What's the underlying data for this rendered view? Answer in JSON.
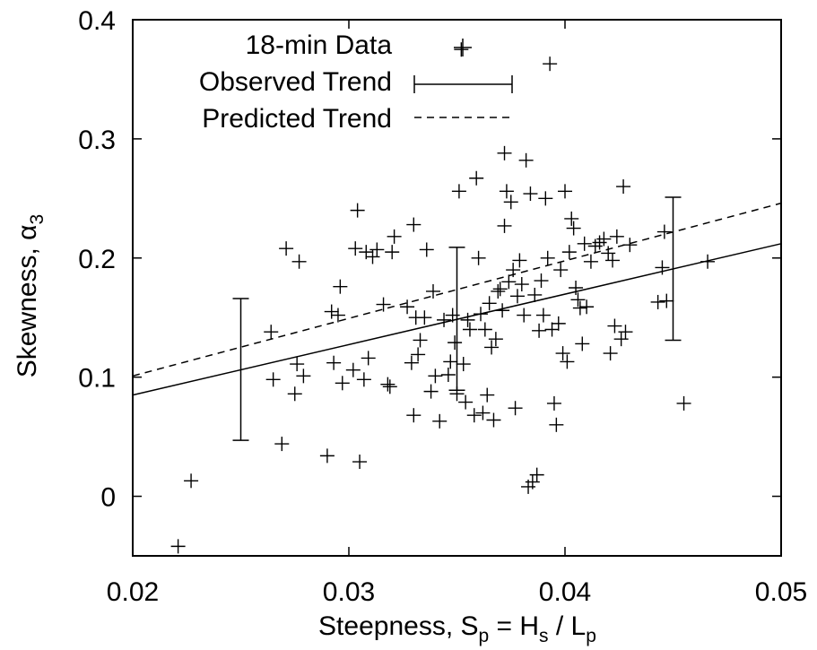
{
  "chart_data": {
    "type": "scatter",
    "xlabel": {
      "text": "Steepness, S",
      "sub_p": "p",
      "eq": " = H",
      "sub_s": "s",
      "slash": " / L",
      "sub_p2": "p"
    },
    "ylabel": {
      "text": "Skewness, α",
      "sub": "3"
    },
    "xlim": [
      0.02,
      0.05
    ],
    "ylim": [
      -0.05,
      0.4
    ],
    "x_ticks": [
      0.02,
      0.03,
      0.04,
      0.05
    ],
    "x_tick_labels": [
      "0.02",
      "0.03",
      "0.04",
      "0.05"
    ],
    "y_ticks": [
      0,
      0.1,
      0.2,
      0.3,
      0.4
    ],
    "y_tick_labels": [
      "0",
      "0.1",
      "0.2",
      "0.3",
      "0.4"
    ],
    "grid": false,
    "legend_position": "top-left",
    "series": [
      {
        "name": "18-min Data",
        "style": "plus-markers",
        "points": [
          [
            0.0221,
            -0.042
          ],
          [
            0.0227,
            0.013
          ],
          [
            0.0264,
            0.138
          ],
          [
            0.0265,
            0.098
          ],
          [
            0.0269,
            0.044
          ],
          [
            0.0271,
            0.208
          ],
          [
            0.0275,
            0.086
          ],
          [
            0.0276,
            0.111
          ],
          [
            0.0277,
            0.197
          ],
          [
            0.0279,
            0.101
          ],
          [
            0.029,
            0.034
          ],
          [
            0.0292,
            0.155
          ],
          [
            0.0293,
            0.112
          ],
          [
            0.0295,
            0.152
          ],
          [
            0.0296,
            0.176
          ],
          [
            0.0297,
            0.095
          ],
          [
            0.0302,
            0.106
          ],
          [
            0.0303,
            0.208
          ],
          [
            0.0304,
            0.24
          ],
          [
            0.0305,
            0.029
          ],
          [
            0.0307,
            0.098
          ],
          [
            0.0308,
            0.205
          ],
          [
            0.0309,
            0.116
          ],
          [
            0.0311,
            0.201
          ],
          [
            0.0313,
            0.207
          ],
          [
            0.0316,
            0.161
          ],
          [
            0.0318,
            0.094
          ],
          [
            0.0319,
            0.092
          ],
          [
            0.032,
            0.205
          ],
          [
            0.0321,
            0.218
          ],
          [
            0.0327,
            0.159
          ],
          [
            0.0329,
            0.112
          ],
          [
            0.033,
            0.228
          ],
          [
            0.033,
            0.068
          ],
          [
            0.0331,
            0.15
          ],
          [
            0.0332,
            0.119
          ],
          [
            0.0333,
            0.131
          ],
          [
            0.0335,
            0.15
          ],
          [
            0.0336,
            0.207
          ],
          [
            0.0338,
            0.088
          ],
          [
            0.0339,
            0.172
          ],
          [
            0.034,
            0.101
          ],
          [
            0.0342,
            0.063
          ],
          [
            0.0344,
            0.148
          ],
          [
            0.0346,
            0.102
          ],
          [
            0.0347,
            0.113
          ],
          [
            0.0348,
            0.152
          ],
          [
            0.0349,
            0.129
          ],
          [
            0.035,
            0.086
          ],
          [
            0.0351,
            0.256
          ],
          [
            0.0352,
            0.375
          ],
          [
            0.0353,
            0.111
          ],
          [
            0.0354,
            0.079
          ],
          [
            0.0355,
            0.148
          ],
          [
            0.0356,
            0.14
          ],
          [
            0.0358,
            0.068
          ],
          [
            0.0359,
            0.267
          ],
          [
            0.036,
            0.2
          ],
          [
            0.0361,
            0.153
          ],
          [
            0.0362,
            0.07
          ],
          [
            0.0363,
            0.14
          ],
          [
            0.0364,
            0.085
          ],
          [
            0.0365,
            0.162
          ],
          [
            0.0366,
            0.125
          ],
          [
            0.0367,
            0.064
          ],
          [
            0.0368,
            0.132
          ],
          [
            0.0369,
            0.172
          ],
          [
            0.037,
            0.174
          ],
          [
            0.0371,
            0.156
          ],
          [
            0.0372,
            0.227
          ],
          [
            0.0372,
            0.288
          ],
          [
            0.0373,
            0.256
          ],
          [
            0.0374,
            0.18
          ],
          [
            0.0375,
            0.247
          ],
          [
            0.0376,
            0.19
          ],
          [
            0.0377,
            0.074
          ],
          [
            0.0378,
            0.168
          ],
          [
            0.0379,
            0.198
          ],
          [
            0.038,
            0.178
          ],
          [
            0.0381,
            0.152
          ],
          [
            0.0382,
            0.282
          ],
          [
            0.0383,
            0.008
          ],
          [
            0.0384,
            0.254
          ],
          [
            0.0385,
            0.012
          ],
          [
            0.0386,
            0.169
          ],
          [
            0.0387,
            0.018
          ],
          [
            0.0388,
            0.139
          ],
          [
            0.0389,
            0.181
          ],
          [
            0.039,
            0.152
          ],
          [
            0.0391,
            0.25
          ],
          [
            0.0392,
            0.2
          ],
          [
            0.0393,
            0.363
          ],
          [
            0.0394,
            0.14
          ],
          [
            0.0395,
            0.078
          ],
          [
            0.0396,
            0.06
          ],
          [
            0.0397,
            0.145
          ],
          [
            0.0398,
            0.19
          ],
          [
            0.0399,
            0.12
          ],
          [
            0.04,
            0.256
          ],
          [
            0.0401,
            0.113
          ],
          [
            0.0402,
            0.205
          ],
          [
            0.0403,
            0.233
          ],
          [
            0.0404,
            0.225
          ],
          [
            0.0405,
            0.175
          ],
          [
            0.0406,
            0.165
          ],
          [
            0.0407,
            0.158
          ],
          [
            0.0408,
            0.128
          ],
          [
            0.0409,
            0.212
          ],
          [
            0.041,
            0.159
          ],
          [
            0.0412,
            0.197
          ],
          [
            0.0414,
            0.21
          ],
          [
            0.0416,
            0.213
          ],
          [
            0.0418,
            0.216
          ],
          [
            0.042,
            0.204
          ],
          [
            0.0421,
            0.12
          ],
          [
            0.0422,
            0.198
          ],
          [
            0.0423,
            0.143
          ],
          [
            0.0424,
            0.218
          ],
          [
            0.0426,
            0.132
          ],
          [
            0.0427,
            0.26
          ],
          [
            0.0428,
            0.138
          ],
          [
            0.043,
            0.211
          ],
          [
            0.0443,
            0.163
          ],
          [
            0.0445,
            0.192
          ],
          [
            0.0446,
            0.222
          ],
          [
            0.0447,
            0.164
          ],
          [
            0.0455,
            0.078
          ],
          [
            0.0466,
            0.197
          ]
        ]
      },
      {
        "name": "Observed Trend",
        "style": "solid-line",
        "line": [
          [
            0.02,
            0.085
          ],
          [
            0.05,
            0.212
          ]
        ],
        "error_bars": [
          {
            "x": 0.025,
            "low": 0.047,
            "high": 0.166
          },
          {
            "x": 0.035,
            "low": 0.089,
            "high": 0.209
          },
          {
            "x": 0.045,
            "low": 0.131,
            "high": 0.251
          }
        ]
      },
      {
        "name": "Predicted Trend",
        "style": "dashed-line",
        "line": [
          [
            0.02,
            0.101
          ],
          [
            0.05,
            0.246
          ]
        ]
      }
    ]
  }
}
